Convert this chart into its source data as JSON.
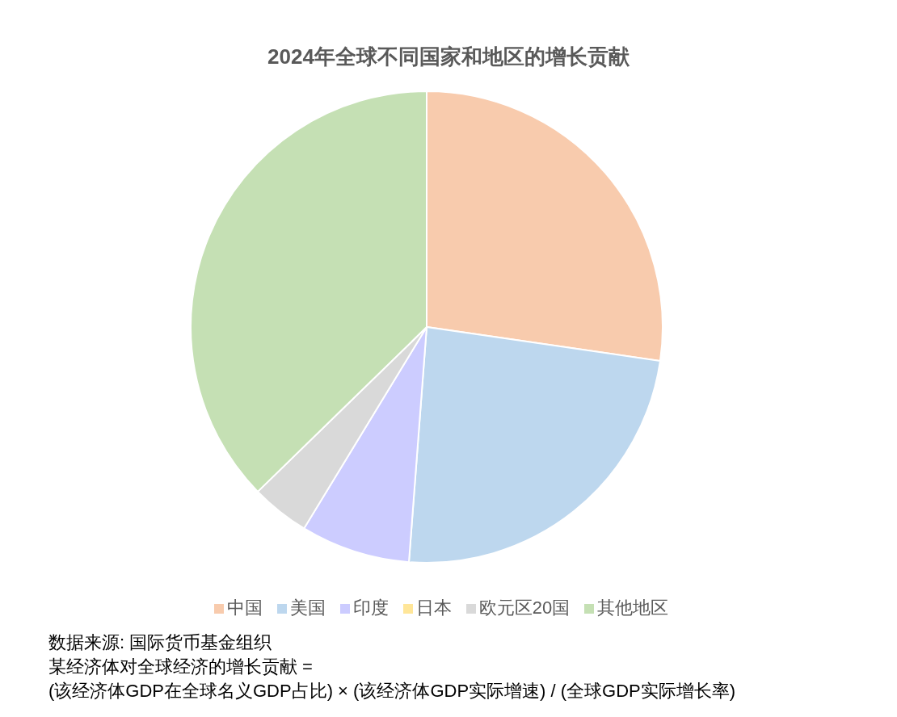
{
  "chart_data": {
    "type": "pie",
    "title": "2024年全球不同国家和地区的增长贡献",
    "categories": [
      "中国",
      "美国",
      "印度",
      "日本",
      "欧元区20国",
      "其他地区"
    ],
    "values": [
      27.3,
      23.9,
      7.5,
      null,
      4.0,
      37.3
    ],
    "colors": [
      "#f8cbad",
      "#bdd7ee",
      "#ccccff",
      "#ffe699",
      "#d9d9d9",
      "#c5e0b4"
    ],
    "legend": "bottom",
    "annotations": [
      "数据来源: 国际货币基金组织",
      "某经济体对全球经济的增长贡献 =",
      "(该经济体GDP在全球名义GDP占比) × (该经济体GDP实际增速) / (全球GDP实际增长率)"
    ]
  }
}
